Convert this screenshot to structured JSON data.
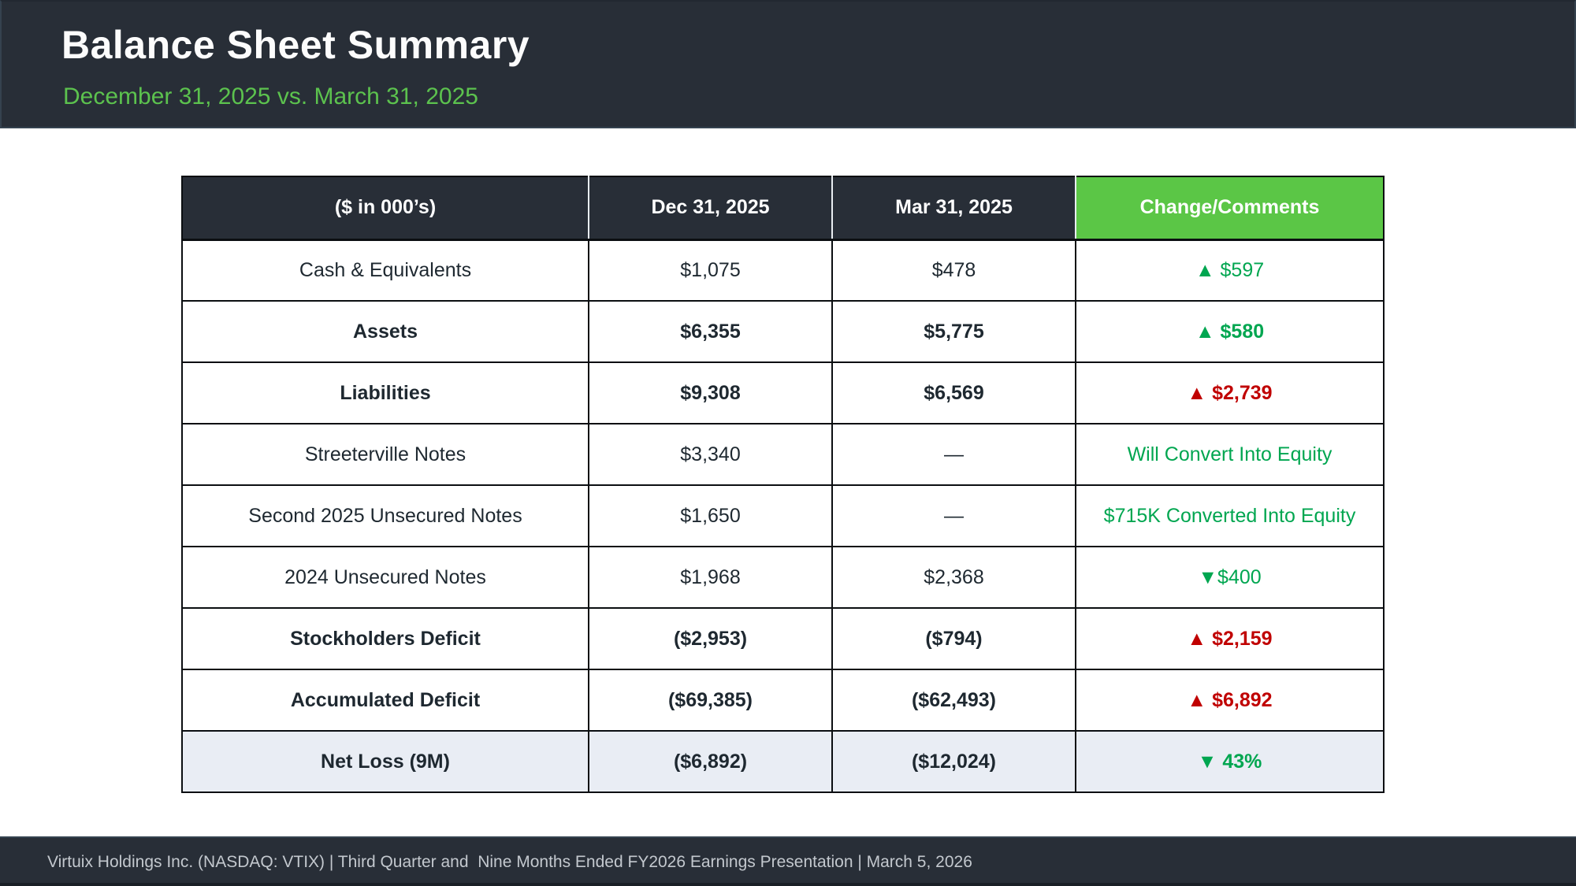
{
  "palette": {
    "bar_bg": "#282E37",
    "bar_border": "#35424F",
    "header_green": "#5BC646",
    "subtitle_green": "#5CC24E",
    "green_text": "#00A650",
    "red_text": "#C00000",
    "highlight_bg": "#E9EDF4"
  },
  "header": {
    "title": "Balance Sheet Summary",
    "subtitle": "December 31, 2025 vs. March 31, 2025"
  },
  "table": {
    "columns": [
      "($ in 000’s)",
      "Dec 31, 2025",
      "Mar 31, 2025",
      "Change/Comments"
    ],
    "rows": [
      {
        "label": "Cash & Equivalents",
        "bold": false,
        "dec": "$1,075",
        "mar": "$478",
        "change": "▲ $597",
        "change_color": "green",
        "change_bold": false,
        "highlight": false
      },
      {
        "label": "Assets",
        "bold": true,
        "dec": "$6,355",
        "mar": "$5,775",
        "change": "▲ $580",
        "change_color": "green",
        "change_bold": true,
        "highlight": false
      },
      {
        "label": "Liabilities",
        "bold": true,
        "dec": "$9,308",
        "mar": "$6,569",
        "change": "▲ $2,739",
        "change_color": "red",
        "change_bold": true,
        "highlight": false
      },
      {
        "label": "Streeterville Notes",
        "bold": false,
        "dec": "$3,340",
        "mar": "—",
        "change": "Will Convert Into Equity",
        "change_color": "green",
        "change_bold": false,
        "highlight": false
      },
      {
        "label": "Second 2025 Unsecured Notes",
        "bold": false,
        "dec": "$1,650",
        "mar": "—",
        "change": "$715K Converted Into Equity",
        "change_color": "green",
        "change_bold": false,
        "highlight": false
      },
      {
        "label": "2024 Unsecured Notes",
        "bold": false,
        "dec": "$1,968",
        "mar": "$2,368",
        "change": "▼$400",
        "change_color": "green",
        "change_bold": false,
        "highlight": false
      },
      {
        "label": "Stockholders Deficit",
        "bold": true,
        "dec": "($2,953)",
        "mar": "($794)",
        "change": "▲ $2,159",
        "change_color": "red",
        "change_bold": true,
        "highlight": false
      },
      {
        "label": "Accumulated Deficit",
        "bold": true,
        "dec": "($69,385)",
        "mar": "($62,493)",
        "change": "▲ $6,892",
        "change_color": "red",
        "change_bold": true,
        "highlight": false
      },
      {
        "label": "Net Loss (9M)",
        "bold": true,
        "dec": "($6,892)",
        "mar": "($12,024)",
        "change": "▼ 43%",
        "change_color": "green",
        "change_bold": true,
        "highlight": true
      }
    ]
  },
  "footer": {
    "text": "Virtuix Holdings Inc. (NASDAQ: VTIX) | Third Quarter and  Nine Months Ended FY2026 Earnings Presentation | March 5, 2026"
  }
}
